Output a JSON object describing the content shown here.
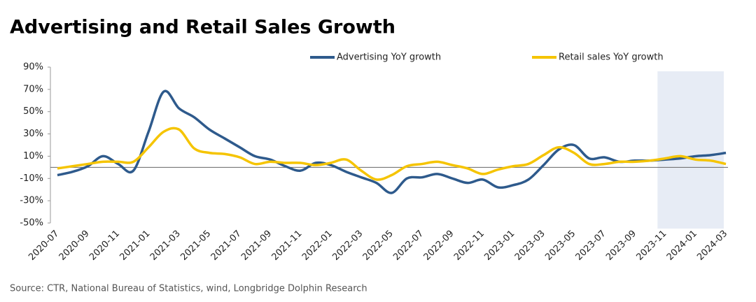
{
  "chart_data": {
    "type": "line",
    "title": "Advertising and Retail Sales Growth",
    "source": "Source: CTR, National Bureau of Statistics, wind, Longbridge Dolphin Research",
    "categories": [
      "2020-07",
      null,
      "2020-09",
      null,
      "2020-11",
      null,
      "2021-01",
      null,
      "2021-03",
      null,
      "2021-05",
      null,
      "2021-07",
      null,
      "2021-09",
      null,
      "2021-11",
      null,
      "2022-01",
      null,
      "2022-03",
      null,
      "2022-05",
      null,
      "2022-07",
      null,
      "2022-09",
      null,
      "2022-11",
      null,
      "2023-01",
      null,
      "2023-03",
      null,
      "2023-05",
      null,
      "2023-07",
      null,
      "2023-09",
      null,
      "2023-11",
      null,
      "2024-01",
      null,
      "2024-03"
    ],
    "series": [
      {
        "name": "Advertising YoY growth",
        "color": "#2e5a8c",
        "values": [
          -7,
          -4,
          1,
          10,
          3,
          -3,
          32,
          68,
          53,
          45,
          34,
          26,
          18,
          10,
          7,
          1,
          -3,
          4,
          2,
          -4,
          -9,
          -14,
          -23,
          -10,
          -9,
          -6,
          -10,
          -14,
          -11,
          -18,
          -16,
          -11,
          2,
          16,
          20,
          8,
          9,
          5,
          6,
          6,
          7,
          8,
          10,
          11,
          13
        ]
      },
      {
        "name": "Retail sales YoY growth",
        "color": "#f5c400",
        "values": [
          -1,
          1,
          3,
          5,
          5,
          5,
          18,
          32,
          34,
          17,
          13,
          12,
          9,
          3,
          5,
          4,
          4,
          2,
          4,
          7,
          -3,
          -11,
          -7,
          1,
          3,
          5,
          2,
          -1,
          -6,
          -2,
          1,
          3,
          11,
          18,
          13,
          3,
          3,
          5,
          5,
          6,
          8,
          10,
          7,
          6,
          3
        ]
      }
    ],
    "ylim": [
      -50,
      90
    ],
    "yticks": [
      {
        "value": -50,
        "label": "-50%"
      },
      {
        "value": -30,
        "label": "-30%"
      },
      {
        "value": -10,
        "label": "-10%"
      },
      {
        "value": 10,
        "label": "10%"
      },
      {
        "value": 30,
        "label": "30%"
      },
      {
        "value": 50,
        "label": "50%"
      },
      {
        "value": 70,
        "label": "70%"
      },
      {
        "value": 90,
        "label": "90%"
      }
    ],
    "highlight_from": "2023-11",
    "grid": false
  }
}
